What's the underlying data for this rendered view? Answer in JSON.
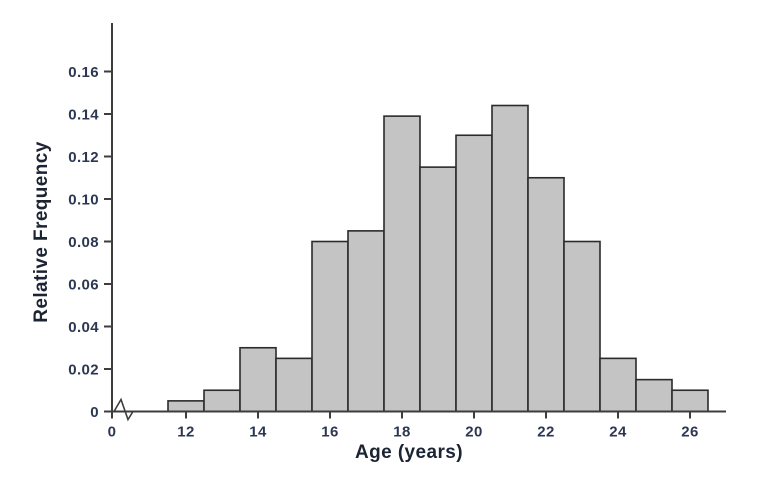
{
  "chart_data": {
    "type": "bar",
    "subtype": "histogram",
    "title": "",
    "xlabel": "Age (years)",
    "ylabel": "Relative Frequency",
    "bin_width": 1,
    "bins": [
      {
        "center": 12,
        "value": 0.005
      },
      {
        "center": 13,
        "value": 0.01
      },
      {
        "center": 14,
        "value": 0.03
      },
      {
        "center": 15,
        "value": 0.025
      },
      {
        "center": 16,
        "value": 0.08
      },
      {
        "center": 17,
        "value": 0.085
      },
      {
        "center": 18,
        "value": 0.139
      },
      {
        "center": 19,
        "value": 0.115
      },
      {
        "center": 20,
        "value": 0.13
      },
      {
        "center": 21,
        "value": 0.144
      },
      {
        "center": 22,
        "value": 0.11
      },
      {
        "center": 23,
        "value": 0.08
      },
      {
        "center": 24,
        "value": 0.025
      },
      {
        "center": 25,
        "value": 0.015
      },
      {
        "center": 26,
        "value": 0.01
      }
    ],
    "x_ticks": [
      {
        "age": 0,
        "label": "0"
      },
      {
        "age": 12,
        "label": "12"
      },
      {
        "age": 14,
        "label": "14"
      },
      {
        "age": 16,
        "label": "16"
      },
      {
        "age": 18,
        "label": "18"
      },
      {
        "age": 20,
        "label": "20"
      },
      {
        "age": 22,
        "label": "22"
      },
      {
        "age": 24,
        "label": "24"
      },
      {
        "age": 26,
        "label": "26"
      }
    ],
    "y_ticks": [
      {
        "value": 0.0,
        "label": "0"
      },
      {
        "value": 0.02,
        "label": "0.02"
      },
      {
        "value": 0.04,
        "label": "0.04"
      },
      {
        "value": 0.06,
        "label": "0.06"
      },
      {
        "value": 0.08,
        "label": "0.08"
      },
      {
        "value": 0.1,
        "label": "0.10"
      },
      {
        "value": 0.12,
        "label": "0.12"
      },
      {
        "value": 0.14,
        "label": "0.14"
      },
      {
        "value": 0.16,
        "label": "0.16"
      }
    ],
    "xlim_years": [
      11.5,
      26.5
    ],
    "ylim": [
      0,
      0.175
    ],
    "x_axis_break": true,
    "grid": false,
    "legend": "none"
  },
  "colors": {
    "background": "#ffffff",
    "bar_fill": "#c4c4c4",
    "bar_stroke": "#2b2b2b",
    "axis": "#3d3d3d",
    "tick_label": "#2c3752",
    "axis_title": "#1c2433"
  }
}
